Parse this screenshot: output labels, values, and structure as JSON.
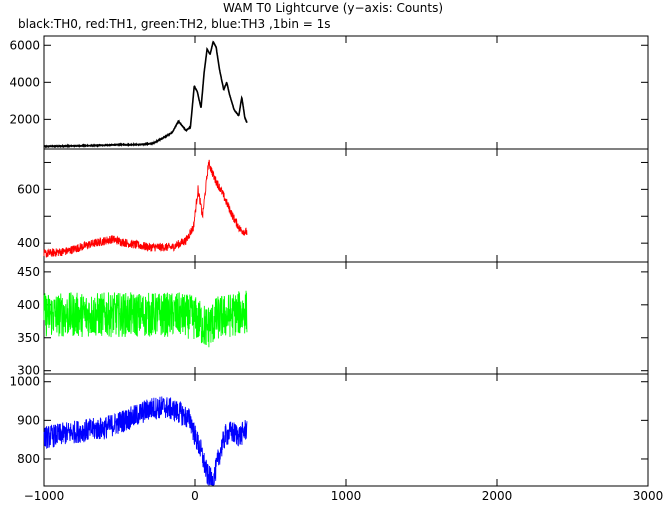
{
  "chart_data": {
    "type": "line",
    "title": "WAM T0 Lightcurve (y−axis: Counts)",
    "subtitle": "black:TH0, red:TH1, green:TH2, blue:TH3 ,1bin = 1s",
    "xlim": [
      -1000,
      3000
    ],
    "x_ticks": [
      -1000,
      0,
      1000,
      2000,
      3000
    ],
    "x_tick_labels": [
      "−1000",
      "0",
      "1000",
      "2000",
      "3000"
    ],
    "data_x_range": [
      -1000,
      345
    ],
    "grid": false,
    "panels": [
      {
        "name": "TH0",
        "color": "#000000",
        "ylim": [
          400,
          6500
        ],
        "y_ticks": [
          2000,
          4000,
          6000
        ],
        "y_tick_labels": [
          "2000",
          "4000",
          "6000"
        ],
        "noise": 20,
        "knots": [
          [
            -1000,
            540
          ],
          [
            -700,
            580
          ],
          [
            -500,
            630
          ],
          [
            -350,
            640
          ],
          [
            -280,
            700
          ],
          [
            -200,
            1050
          ],
          [
            -150,
            1300
          ],
          [
            -110,
            1900
          ],
          [
            -90,
            1700
          ],
          [
            -60,
            1400
          ],
          [
            -30,
            1600
          ],
          [
            -5,
            3800
          ],
          [
            15,
            3500
          ],
          [
            40,
            2600
          ],
          [
            60,
            4500
          ],
          [
            80,
            5800
          ],
          [
            100,
            5500
          ],
          [
            120,
            6200
          ],
          [
            140,
            5900
          ],
          [
            160,
            4800
          ],
          [
            190,
            3600
          ],
          [
            210,
            4000
          ],
          [
            230,
            3300
          ],
          [
            260,
            2500
          ],
          [
            290,
            2200
          ],
          [
            310,
            3200
          ],
          [
            330,
            2100
          ],
          [
            345,
            1800
          ]
        ]
      },
      {
        "name": "TH1",
        "color": "#ff0000",
        "ylim": [
          330,
          750
        ],
        "y_ticks": [
          400,
          500,
          600,
          700
        ],
        "y_tick_labels": [
          "400",
          "",
          "600",
          ""
        ],
        "noise": 16,
        "knots": [
          [
            -1000,
            360
          ],
          [
            -850,
            370
          ],
          [
            -700,
            395
          ],
          [
            -550,
            415
          ],
          [
            -450,
            400
          ],
          [
            -300,
            385
          ],
          [
            -150,
            385
          ],
          [
            -60,
            410
          ],
          [
            -10,
            460
          ],
          [
            20,
            600
          ],
          [
            50,
            500
          ],
          [
            90,
            700
          ],
          [
            130,
            640
          ],
          [
            170,
            600
          ],
          [
            210,
            550
          ],
          [
            250,
            500
          ],
          [
            300,
            450
          ],
          [
            345,
            440
          ]
        ]
      },
      {
        "name": "TH2",
        "color": "#00ff00",
        "ylim": [
          295,
          465
        ],
        "y_ticks": [
          300,
          350,
          400,
          450
        ],
        "y_tick_labels": [
          "300",
          "350",
          "400",
          "450"
        ],
        "noise": 34,
        "knots": [
          [
            -1000,
            385
          ],
          [
            -500,
            385
          ],
          [
            -100,
            385
          ],
          [
            0,
            380
          ],
          [
            80,
            365
          ],
          [
            150,
            380
          ],
          [
            345,
            390
          ]
        ]
      },
      {
        "name": "TH3",
        "color": "#0000ff",
        "ylim": [
          730,
          1020
        ],
        "y_ticks": [
          800,
          900,
          1000
        ],
        "y_tick_labels": [
          "800",
          "900",
          "1000"
        ],
        "noise": 30,
        "knots": [
          [
            -1000,
            855
          ],
          [
            -800,
            870
          ],
          [
            -600,
            880
          ],
          [
            -400,
            910
          ],
          [
            -300,
            930
          ],
          [
            -200,
            935
          ],
          [
            -100,
            920
          ],
          [
            -30,
            900
          ],
          [
            0,
            860
          ],
          [
            40,
            820
          ],
          [
            80,
            760
          ],
          [
            120,
            740
          ],
          [
            160,
            810
          ],
          [
            200,
            860
          ],
          [
            240,
            870
          ],
          [
            300,
            860
          ],
          [
            345,
            880
          ]
        ]
      }
    ]
  }
}
